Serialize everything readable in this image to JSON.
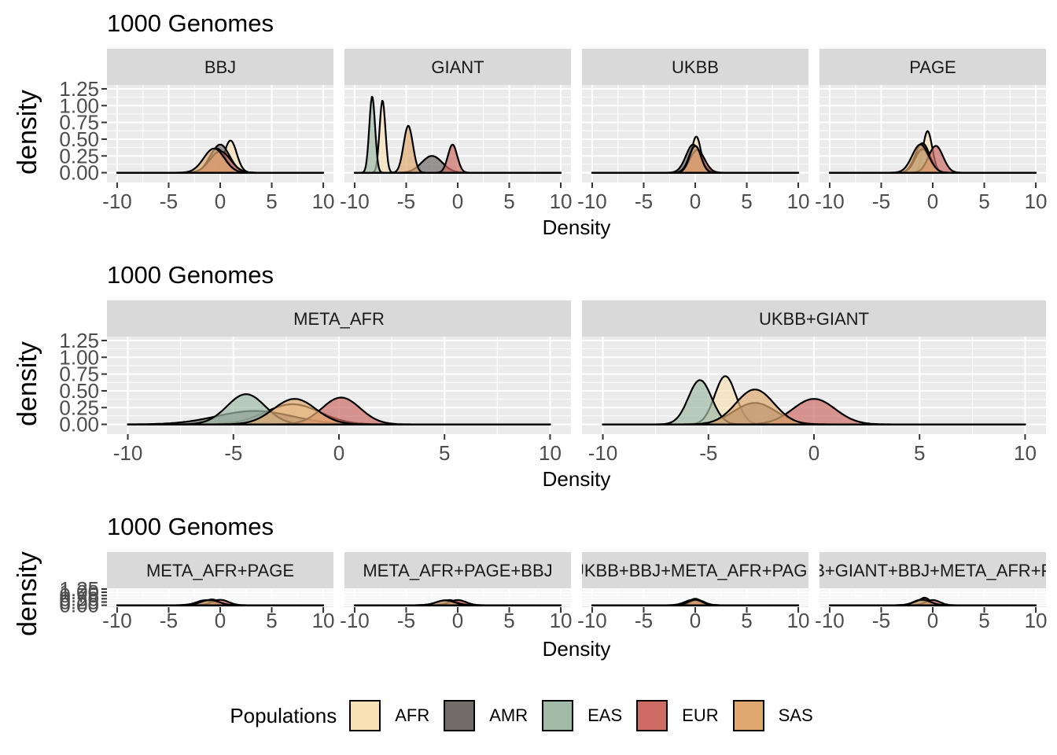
{
  "colors": {
    "AFR": "#f7e1b5",
    "AMR": "#716b6a",
    "EAS": "#a0baa6",
    "EUR": "#cd6c64",
    "SAS": "#e0a971"
  },
  "legend": {
    "title": "Populations",
    "items": [
      "AFR",
      "AMR",
      "EAS",
      "EUR",
      "SAS"
    ]
  },
  "chart_data": [
    {
      "type": "area",
      "title": "1000 Genomes",
      "xlabel": "Density",
      "ylabel": "density",
      "xlim": [
        -10,
        10
      ],
      "ylim": [
        0,
        1.25
      ],
      "x_ticks": [
        -10,
        -5,
        0,
        5,
        10
      ],
      "y_ticks": [
        0.0,
        0.25,
        0.5,
        0.75,
        1.0,
        1.25
      ],
      "grid": true,
      "legend": "bottom",
      "facets": [
        {
          "label": "BBJ",
          "series": [
            {
              "name": "AFR",
              "mu": 1.0,
              "sd": 0.6,
              "h": 0.48
            },
            {
              "name": "AMR",
              "mu": 0.0,
              "sd": 0.9,
              "h": 0.42
            },
            {
              "name": "EAS",
              "mu": -0.3,
              "sd": 0.8,
              "h": 0.36
            },
            {
              "name": "EUR",
              "mu": 0.0,
              "sd": 1.0,
              "h": 0.32
            },
            {
              "name": "SAS",
              "mu": -0.6,
              "sd": 1.0,
              "h": 0.36
            }
          ]
        },
        {
          "label": "GIANT",
          "series": [
            {
              "name": "AFR",
              "mu": -7.3,
              "sd": 0.28,
              "h": 1.08
            },
            {
              "name": "AMR",
              "mu": -2.5,
              "sd": 1.0,
              "h": 0.25
            },
            {
              "name": "EAS",
              "mu": -8.3,
              "sd": 0.28,
              "h": 1.14
            },
            {
              "name": "EUR",
              "mu": -0.5,
              "sd": 0.45,
              "h": 0.42
            },
            {
              "name": "SAS",
              "mu": -4.8,
              "sd": 0.45,
              "h": 0.7
            }
          ]
        },
        {
          "label": "UKBB",
          "series": [
            {
              "name": "AFR",
              "mu": 0.1,
              "sd": 0.45,
              "h": 0.54
            },
            {
              "name": "AMR",
              "mu": -0.2,
              "sd": 0.7,
              "h": 0.42
            },
            {
              "name": "EAS",
              "mu": 0.0,
              "sd": 0.6,
              "h": 0.4
            },
            {
              "name": "EUR",
              "mu": 0.2,
              "sd": 0.7,
              "h": 0.34
            },
            {
              "name": "SAS",
              "mu": 0.0,
              "sd": 0.55,
              "h": 0.4
            }
          ]
        },
        {
          "label": "PAGE",
          "series": [
            {
              "name": "AFR",
              "mu": -0.5,
              "sd": 0.45,
              "h": 0.62
            },
            {
              "name": "AMR",
              "mu": -1.0,
              "sd": 0.7,
              "h": 0.44
            },
            {
              "name": "EAS",
              "mu": -1.0,
              "sd": 0.7,
              "h": 0.35
            },
            {
              "name": "EUR",
              "mu": 0.3,
              "sd": 0.7,
              "h": 0.4
            },
            {
              "name": "SAS",
              "mu": -1.2,
              "sd": 0.8,
              "h": 0.42
            }
          ]
        }
      ]
    },
    {
      "type": "area",
      "title": "1000 Genomes",
      "xlabel": "Density",
      "ylabel": "density",
      "xlim": [
        -10,
        10
      ],
      "ylim": [
        0,
        1.25
      ],
      "x_ticks": [
        -10,
        -5,
        0,
        5,
        10
      ],
      "y_ticks": [
        0.0,
        0.25,
        0.5,
        0.75,
        1.0,
        1.25
      ],
      "grid": true,
      "legend": "bottom",
      "facets": [
        {
          "label": "META_AFR",
          "series": [
            {
              "name": "AFR",
              "mu": -2.2,
              "sd": 1.3,
              "h": 0.3
            },
            {
              "name": "AMR",
              "mu": -4.0,
              "sd": 1.8,
              "h": 0.2
            },
            {
              "name": "EAS",
              "mu": -4.4,
              "sd": 0.9,
              "h": 0.45
            },
            {
              "name": "EUR",
              "mu": 0.1,
              "sd": 0.9,
              "h": 0.4
            },
            {
              "name": "SAS",
              "mu": -2.1,
              "sd": 1.0,
              "h": 0.38
            }
          ]
        },
        {
          "label": "UKBB+GIANT",
          "series": [
            {
              "name": "AFR",
              "mu": -4.2,
              "sd": 0.5,
              "h": 0.72
            },
            {
              "name": "AMR",
              "mu": -2.8,
              "sd": 1.0,
              "h": 0.32
            },
            {
              "name": "EAS",
              "mu": -5.4,
              "sd": 0.55,
              "h": 0.66
            },
            {
              "name": "EUR",
              "mu": 0.0,
              "sd": 1.0,
              "h": 0.38
            },
            {
              "name": "SAS",
              "mu": -2.8,
              "sd": 0.9,
              "h": 0.52
            }
          ]
        }
      ]
    },
    {
      "type": "area",
      "title": "1000 Genomes",
      "xlabel": "Density",
      "ylabel": "density",
      "xlim": [
        -10,
        10
      ],
      "ylim": [
        0,
        1.25
      ],
      "x_ticks": [
        -10,
        -5,
        0,
        5,
        10
      ],
      "y_ticks": [
        0.0,
        0.25,
        0.5,
        0.75,
        1.0,
        1.25
      ],
      "grid": true,
      "legend": "bottom",
      "facets": [
        {
          "label": "META_AFR+PAGE",
          "series": [
            {
              "name": "AFR",
              "mu": -0.8,
              "sd": 0.7,
              "h": 0.45
            },
            {
              "name": "AMR",
              "mu": -1.2,
              "sd": 1.0,
              "h": 0.4
            },
            {
              "name": "EAS",
              "mu": -1.5,
              "sd": 0.8,
              "h": 0.38
            },
            {
              "name": "EUR",
              "mu": 0.0,
              "sd": 0.8,
              "h": 0.42
            },
            {
              "name": "SAS",
              "mu": -1.0,
              "sd": 0.9,
              "h": 0.4
            }
          ]
        },
        {
          "label": "META_AFR+PAGE+BBJ",
          "series": [
            {
              "name": "AFR",
              "mu": -0.8,
              "sd": 0.7,
              "h": 0.4
            },
            {
              "name": "AMR",
              "mu": -1.0,
              "sd": 1.0,
              "h": 0.38
            },
            {
              "name": "EAS",
              "mu": -1.3,
              "sd": 0.8,
              "h": 0.36
            },
            {
              "name": "EUR",
              "mu": 0.0,
              "sd": 0.8,
              "h": 0.4
            },
            {
              "name": "SAS",
              "mu": -1.2,
              "sd": 0.9,
              "h": 0.38
            }
          ]
        },
        {
          "label": "UKBB+BBJ+META_AFR+PAGE",
          "series": [
            {
              "name": "AFR",
              "mu": 0.0,
              "sd": 0.6,
              "h": 0.5
            },
            {
              "name": "AMR",
              "mu": -0.2,
              "sd": 0.8,
              "h": 0.42
            },
            {
              "name": "EAS",
              "mu": -0.3,
              "sd": 0.7,
              "h": 0.4
            },
            {
              "name": "EUR",
              "mu": 0.2,
              "sd": 0.7,
              "h": 0.4
            },
            {
              "name": "SAS",
              "mu": 0.0,
              "sd": 0.7,
              "h": 0.42
            }
          ]
        },
        {
          "label": "UKBB+GIANT+BBJ+META_AFR+PAGE",
          "series": [
            {
              "name": "AFR",
              "mu": -0.8,
              "sd": 0.55,
              "h": 0.58
            },
            {
              "name": "AMR",
              "mu": -1.0,
              "sd": 0.8,
              "h": 0.45
            },
            {
              "name": "EAS",
              "mu": -1.2,
              "sd": 0.7,
              "h": 0.4
            },
            {
              "name": "EUR",
              "mu": 0.0,
              "sd": 0.7,
              "h": 0.4
            },
            {
              "name": "SAS",
              "mu": -1.0,
              "sd": 0.8,
              "h": 0.42
            }
          ]
        }
      ]
    }
  ]
}
